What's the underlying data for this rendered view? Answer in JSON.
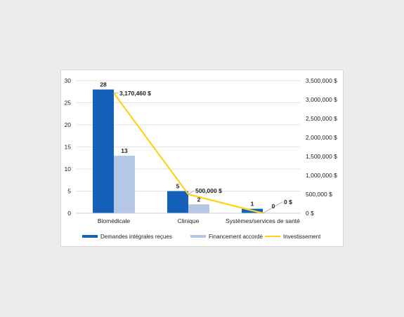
{
  "chart_data": {
    "type": "bar",
    "categories": [
      "Biomédicale",
      "Clinique",
      "Systèmes/services de santé"
    ],
    "series": [
      {
        "name": "Demandes intégrales reçues",
        "kind": "bar",
        "axis": "left",
        "color": "#1560b8",
        "values": [
          28,
          5,
          1
        ],
        "labels": [
          "28",
          "5",
          "1"
        ]
      },
      {
        "name": "Financement accordé",
        "kind": "bar",
        "axis": "left",
        "color": "#b4c7e7",
        "values": [
          13,
          2,
          0
        ],
        "labels": [
          "13",
          "2",
          "0"
        ]
      },
      {
        "name": "Investissement",
        "kind": "line",
        "axis": "right",
        "color": "#ffd21e",
        "values": [
          3170460,
          500000,
          0
        ],
        "labels": [
          "3,170,460 $",
          "500,000 $",
          "0 $"
        ]
      }
    ],
    "y_left": {
      "range": [
        0,
        30
      ],
      "ticks": [
        "0",
        "5",
        "10",
        "15",
        "20",
        "25",
        "30"
      ]
    },
    "y_right": {
      "range": [
        0,
        3500000
      ],
      "ticks": [
        "0 $",
        "500,000 $",
        "1,000,000 $",
        "1,500,000 $",
        "2,000,000 $",
        "2,500,000 $",
        "3,000,000 $",
        "3,500,000 $"
      ]
    },
    "grid": true,
    "legend": "bottom",
    "title": "",
    "xlabel": "",
    "ylabel": ""
  }
}
